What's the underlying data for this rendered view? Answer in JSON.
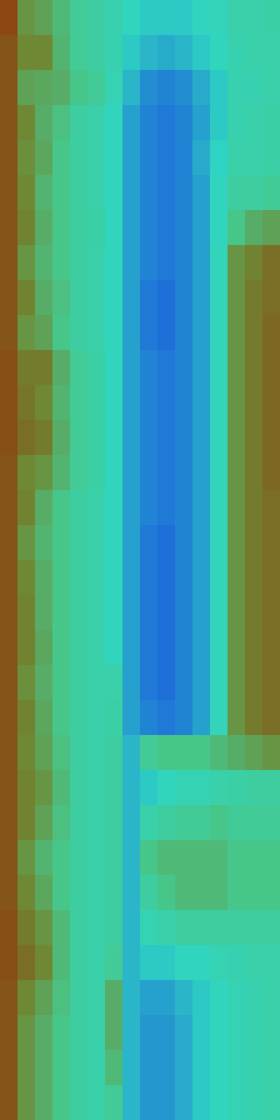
{
  "chart_data": {
    "type": "heatmap",
    "tick_labels": false,
    "cells": [
      [
        72,
        60,
        58,
        54,
        50,
        48,
        45,
        42,
        40,
        40,
        40,
        42,
        43,
        46,
        46,
        47
      ],
      [
        70,
        62,
        62,
        55,
        50,
        48,
        45,
        40,
        38,
        37,
        38,
        40,
        42,
        45,
        46,
        46
      ],
      [
        70,
        58,
        57,
        56,
        52,
        50,
        44,
        38,
        34,
        33,
        34,
        37,
        40,
        45,
        45,
        46
      ],
      [
        70,
        62,
        56,
        53,
        48,
        46,
        42,
        36,
        33,
        32,
        33,
        36,
        40,
        45,
        46,
        47
      ],
      [
        70,
        61,
        57,
        52,
        48,
        46,
        42,
        36,
        33,
        32,
        33,
        37,
        41,
        46,
        46,
        47
      ],
      [
        70,
        62,
        55,
        52,
        48,
        46,
        42,
        36,
        33,
        32,
        33,
        36,
        42,
        48,
        48,
        50
      ],
      [
        70,
        63,
        56,
        52,
        48,
        47,
        42,
        36,
        33,
        32,
        33,
        36,
        42,
        52,
        56,
        58
      ],
      [
        70,
        60,
        55,
        52,
        48,
        46,
        42,
        36,
        33,
        32,
        33,
        36,
        43,
        60,
        63,
        66
      ],
      [
        70,
        63,
        56,
        53,
        48,
        46,
        42,
        36,
        32,
        31,
        33,
        36,
        43,
        60,
        64,
        66
      ],
      [
        70,
        60,
        58,
        52,
        48,
        46,
        42,
        36,
        32,
        31,
        33,
        36,
        43,
        60,
        64,
        67
      ],
      [
        71,
        64,
        64,
        56,
        50,
        47,
        42,
        36,
        33,
        32,
        33,
        36,
        43,
        60,
        64,
        67
      ],
      [
        71,
        65,
        62,
        55,
        50,
        47,
        42,
        36,
        33,
        32,
        33,
        36,
        43,
        60,
        64,
        67
      ],
      [
        71,
        66,
        64,
        56,
        50,
        47,
        42,
        36,
        33,
        32,
        33,
        36,
        43,
        60,
        64,
        67
      ],
      [
        70,
        62,
        60,
        55,
        50,
        47,
        42,
        36,
        33,
        32,
        33,
        36,
        43,
        60,
        64,
        67
      ],
      [
        70,
        63,
        56,
        52,
        48,
        46,
        42,
        36,
        33,
        32,
        33,
        36,
        43,
        60,
        64,
        66
      ],
      [
        70,
        60,
        55,
        52,
        48,
        46,
        42,
        36,
        32,
        31,
        33,
        36,
        43,
        60,
        64,
        66
      ],
      [
        70,
        62,
        56,
        52,
        48,
        46,
        42,
        36,
        32,
        31,
        33,
        36,
        43,
        60,
        64,
        66
      ],
      [
        70,
        63,
        56,
        52,
        48,
        46,
        42,
        36,
        32,
        31,
        33,
        36,
        43,
        60,
        64,
        66
      ],
      [
        70,
        63,
        57,
        52,
        48,
        46,
        42,
        36,
        32,
        31,
        33,
        36,
        43,
        60,
        64,
        66
      ],
      [
        70,
        61,
        56,
        52,
        48,
        46,
        46,
        36,
        32,
        31,
        33,
        36,
        43,
        60,
        64,
        66
      ],
      [
        70,
        63,
        57,
        52,
        48,
        46,
        47,
        36,
        33,
        32,
        33,
        36,
        43,
        60,
        64,
        66
      ],
      [
        70,
        62,
        58,
        53,
        48,
        46,
        48,
        38,
        50,
        52,
        52,
        52,
        54,
        56,
        58,
        60
      ],
      [
        70,
        63,
        60,
        54,
        48,
        46,
        48,
        38,
        40,
        42,
        44,
        44,
        46,
        47,
        48,
        48
      ],
      [
        70,
        63,
        58,
        53,
        48,
        46,
        48,
        38,
        46,
        48,
        50,
        50,
        52,
        50,
        50,
        50
      ],
      [
        70,
        60,
        55,
        52,
        48,
        46,
        48,
        38,
        52,
        54,
        54,
        54,
        54,
        52,
        52,
        52
      ],
      [
        70,
        62,
        57,
        52,
        48,
        46,
        48,
        38,
        48,
        52,
        54,
        54,
        54,
        52,
        52,
        52
      ],
      [
        71,
        64,
        60,
        54,
        48,
        46,
        48,
        38,
        44,
        46,
        48,
        48,
        48,
        48,
        48,
        48
      ],
      [
        71,
        66,
        62,
        54,
        48,
        46,
        50,
        38,
        40,
        40,
        42,
        42,
        44,
        45,
        46,
        46
      ],
      [
        70,
        62,
        58,
        53,
        48,
        46,
        56,
        38,
        36,
        36,
        38,
        40,
        42,
        44,
        45,
        46
      ],
      [
        70,
        60,
        56,
        52,
        48,
        46,
        56,
        38,
        35,
        35,
        37,
        40,
        42,
        44,
        45,
        46
      ],
      [
        70,
        60,
        56,
        52,
        48,
        46,
        54,
        38,
        35,
        35,
        37,
        40,
        42,
        44,
        45,
        46
      ],
      [
        70,
        60,
        56,
        52,
        48,
        46,
        50,
        38,
        35,
        35,
        37,
        40,
        42,
        44,
        45,
        46
      ]
    ]
  }
}
